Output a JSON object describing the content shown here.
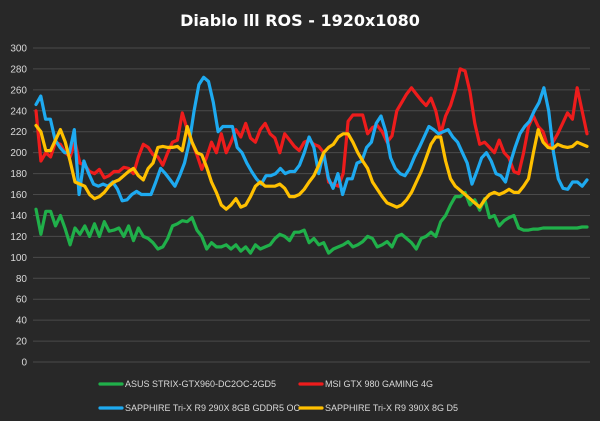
{
  "chart_data": {
    "type": "line",
    "title": "Diablo lll ROS - 1920x1080",
    "xlabel": "",
    "ylabel": "",
    "ylim": [
      0,
      300
    ],
    "yticks": [
      0,
      20,
      40,
      60,
      80,
      100,
      120,
      140,
      160,
      180,
      200,
      220,
      240,
      260,
      280,
      300
    ],
    "grid": true,
    "legend_position": "bottom",
    "series": [
      {
        "name": "ASUS STRIX-GTX960-DC2OC-2GD5",
        "color": "#20b04a",
        "values": [
          146,
          122,
          144,
          144,
          130,
          140,
          127,
          112,
          128,
          122,
          130,
          120,
          132,
          120,
          134,
          125,
          126,
          128,
          120,
          130,
          116,
          128,
          120,
          118,
          114,
          108,
          110,
          118,
          130,
          132,
          135,
          134,
          138,
          126,
          120,
          108,
          114,
          110,
          110,
          112,
          108,
          112,
          106,
          110,
          104,
          112,
          108,
          110,
          112,
          118,
          122,
          120,
          116,
          124,
          124,
          126,
          114,
          118,
          112,
          114,
          104,
          108,
          110,
          112,
          115,
          110,
          112,
          115,
          120,
          118,
          110,
          112,
          115,
          110,
          120,
          122,
          118,
          114,
          108,
          118,
          120,
          124,
          120,
          134,
          140,
          150,
          158,
          158,
          162,
          150,
          155,
          145,
          156,
          138,
          140,
          130,
          135,
          138,
          140,
          128,
          126,
          126,
          127,
          127,
          128,
          128,
          128,
          128,
          128,
          128,
          128,
          128,
          129,
          129
        ]
      },
      {
        "name": "MSI GTX 980 GAMING 4G",
        "color": "#ee1c1c",
        "values": [
          240,
          192,
          200,
          196,
          210,
          208,
          200,
          196,
          210,
          190,
          188,
          182,
          180,
          184,
          176,
          178,
          182,
          182,
          186,
          185,
          180,
          196,
          208,
          205,
          198,
          196,
          188,
          200,
          210,
          212,
          238,
          222,
          210,
          198,
          184,
          196,
          210,
          200,
          218,
          200,
          210,
          222,
          215,
          228,
          214,
          210,
          222,
          228,
          218,
          214,
          200,
          218,
          212,
          206,
          202,
          210,
          212,
          208,
          206,
          200,
          172,
          170,
          168,
          180,
          230,
          236,
          236,
          236,
          218,
          224,
          226,
          220,
          210,
          216,
          240,
          248,
          256,
          262,
          256,
          250,
          245,
          252,
          240,
          218,
          235,
          245,
          260,
          280,
          278,
          258,
          228,
          208,
          210,
          205,
          200,
          212,
          200,
          195,
          182,
          180,
          200,
          225,
          235,
          225,
          220,
          205,
          210,
          218,
          228,
          238,
          232,
          262,
          240,
          218
        ]
      },
      {
        "name": "SAPPHIRE Tri-X R9 290X 8GB GDDR5 OC",
        "color": "#1eaaf0",
        "values": [
          246,
          254,
          232,
          232,
          212,
          205,
          200,
          200,
          222,
          160,
          192,
          180,
          170,
          168,
          170,
          168,
          172,
          165,
          154,
          155,
          160,
          163,
          160,
          160,
          160,
          172,
          185,
          180,
          174,
          168,
          178,
          190,
          210,
          240,
          265,
          272,
          268,
          248,
          220,
          225,
          225,
          225,
          205,
          200,
          190,
          182,
          175,
          170,
          178,
          178,
          180,
          185,
          180,
          182,
          182,
          188,
          200,
          215,
          205,
          180,
          200,
          176,
          166,
          180,
          160,
          175,
          175,
          190,
          192,
          205,
          210,
          228,
          235,
          220,
          195,
          185,
          180,
          178,
          185,
          196,
          205,
          215,
          225,
          222,
          218,
          220,
          222,
          215,
          210,
          200,
          190,
          170,
          182,
          195,
          200,
          192,
          180,
          178,
          172,
          190,
          205,
          218,
          225,
          230,
          240,
          248,
          262,
          240,
          200,
          175,
          166,
          165,
          172,
          172,
          168,
          174
        ]
      },
      {
        "name": "SAPPHIRE Tri-X R9 390X 8G D5",
        "color": "#ffc000",
        "values": [
          226,
          220,
          202,
          202,
          212,
          222,
          210,
          192,
          172,
          170,
          168,
          160,
          156,
          158,
          162,
          168,
          172,
          174,
          178,
          182,
          185,
          178,
          174,
          185,
          190,
          205,
          206,
          205,
          205,
          206,
          202,
          225,
          210,
          200,
          198,
          186,
          172,
          162,
          150,
          146,
          150,
          156,
          148,
          150,
          158,
          168,
          172,
          168,
          168,
          168,
          170,
          166,
          158,
          158,
          160,
          165,
          172,
          178,
          188,
          200,
          205,
          208,
          215,
          218,
          218,
          210,
          200,
          192,
          185,
          172,
          165,
          158,
          152,
          150,
          148,
          150,
          155,
          162,
          172,
          182,
          195,
          208,
          215,
          215,
          192,
          175,
          168,
          164,
          160,
          156,
          152,
          148,
          155,
          160,
          162,
          160,
          162,
          165,
          162,
          162,
          168,
          175,
          200,
          222,
          210,
          205,
          204,
          208,
          206,
          205,
          206,
          210,
          208,
          206
        ]
      }
    ]
  }
}
